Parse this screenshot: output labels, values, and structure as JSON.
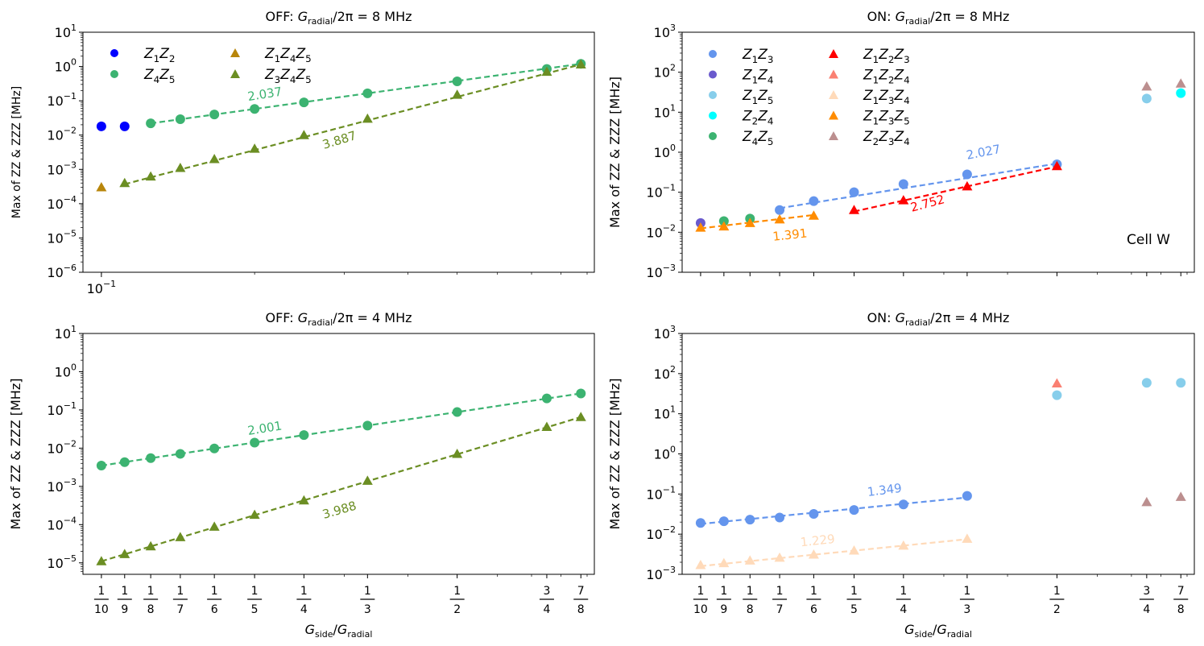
{
  "figure": {
    "xlabel": "G_side/G_radial",
    "cell_label": "Cell W"
  },
  "chart_data": [
    {
      "id": "off8",
      "type": "scatter",
      "title_prefix": "OFF: ",
      "title_suffix": "/2π = 8 MHz",
      "ylabel": "Max of ZZ & ZZZ [MHz]",
      "ylim_exp": [
        -6,
        1
      ],
      "ytick_exps": [
        -5,
        -4,
        -3,
        -2,
        -1,
        0,
        1
      ],
      "xscale_note": "log",
      "xtick_label": "10⁻¹",
      "legend": {
        "placement": "top-left",
        "columns": 2
      },
      "series": [
        {
          "name": "Z1Z2",
          "color": "#0000ff",
          "marker": "circle",
          "x": [
            0.1,
            0.1111
          ],
          "y": [
            0.018,
            0.018
          ]
        },
        {
          "name": "Z4Z5",
          "color": "#3cb371",
          "marker": "circle",
          "x": [
            0.125,
            0.1429,
            0.1667,
            0.2,
            0.25,
            0.3333,
            0.5,
            0.75,
            0.875
          ],
          "y": [
            0.022,
            0.029,
            0.04,
            0.058,
            0.09,
            0.165,
            0.37,
            0.85,
            1.2
          ]
        },
        {
          "name": "Z1Z4Z5",
          "color": "#b8860b",
          "marker": "triangle",
          "x": [
            0.1
          ],
          "y": [
            0.0003
          ]
        },
        {
          "name": "Z3Z4Z5",
          "color": "#6b8e23",
          "marker": "triangle",
          "x": [
            0.1111,
            0.125,
            0.1429,
            0.1667,
            0.2,
            0.25,
            0.3333,
            0.5,
            0.75,
            0.875
          ],
          "y": [
            0.0004,
            0.00062,
            0.0011,
            0.002,
            0.004,
            0.01,
            0.03,
            0.15,
            0.7,
            1.15
          ]
        }
      ],
      "fits": [
        {
          "color": "#3cb371",
          "x": [
            0.125,
            0.875
          ],
          "y": [
            0.022,
            1.2
          ],
          "label": "2.037",
          "lx": 0.21,
          "ly": 0.12,
          "angle": -9
        },
        {
          "color": "#6b8e23",
          "x": [
            0.1111,
            0.875
          ],
          "y": [
            0.00037,
            1.15
          ],
          "label": "3.887",
          "lx": 0.295,
          "ly": 0.0055,
          "angle": -17
        }
      ]
    },
    {
      "id": "on8",
      "type": "scatter",
      "title_prefix": "ON: ",
      "title_suffix": "/2π = 8 MHz",
      "ylabel": "Max of ZZ & ZZZ [MHz]",
      "ylim_exp": [
        -3,
        3
      ],
      "ytick_exps": [
        -3,
        -2,
        -1,
        0,
        1,
        2,
        3
      ],
      "legend": {
        "placement": "top-left",
        "columns": 2
      },
      "series": [
        {
          "name": "Z1Z3",
          "color": "#6495ed",
          "marker": "circle",
          "x": [
            0.1429,
            0.1667,
            0.2,
            0.25,
            0.3333,
            0.5
          ],
          "y": [
            0.036,
            0.06,
            0.1,
            0.16,
            0.28,
            0.5
          ]
        },
        {
          "name": "Z1Z4",
          "color": "#6a5acd",
          "marker": "circle",
          "x": [
            0.1
          ],
          "y": [
            0.017
          ]
        },
        {
          "name": "Z1Z5",
          "color": "#87ceeb",
          "marker": "circle",
          "x": [
            0.75
          ],
          "y": [
            22
          ]
        },
        {
          "name": "Z2Z4",
          "color": "#00ffff",
          "marker": "circle",
          "x": [
            0.875
          ],
          "y": [
            30
          ]
        },
        {
          "name": "Z4Z5",
          "color": "#3cb371",
          "marker": "circle",
          "x": [
            0.1111,
            0.125
          ],
          "y": [
            0.019,
            0.022
          ]
        },
        {
          "name": "Z1Z2Z3",
          "color": "#ff0000",
          "marker": "triangle",
          "x": [
            0.2,
            0.25,
            0.3333,
            0.5
          ],
          "y": [
            0.036,
            0.063,
            0.14,
            0.45
          ]
        },
        {
          "name": "Z1Z2Z4",
          "color": "#fa8072",
          "marker": "triangle",
          "x": [],
          "y": []
        },
        {
          "name": "Z1Z3Z4",
          "color": "#ffdab9",
          "marker": "triangle",
          "x": [],
          "y": []
        },
        {
          "name": "Z1Z3Z5",
          "color": "#ff8c00",
          "marker": "triangle",
          "x": [
            0.1,
            0.1111,
            0.125,
            0.1429,
            0.1667
          ],
          "y": [
            0.013,
            0.014,
            0.017,
            0.021,
            0.026
          ]
        },
        {
          "name": "Z2Z3Z4",
          "color": "#bc8f8f",
          "marker": "triangle",
          "x": [
            0.75,
            0.875
          ],
          "y": [
            44,
            52
          ]
        }
      ],
      "fits": [
        {
          "color": "#6495ed",
          "x": [
            0.1429,
            0.5
          ],
          "y": [
            0.04,
            0.52
          ],
          "label": "2.027",
          "lx": 0.36,
          "ly": 0.8,
          "angle": -11
        },
        {
          "color": "#ff0000",
          "x": [
            0.2,
            0.5
          ],
          "y": [
            0.033,
            0.44
          ],
          "label": "2.752",
          "lx": 0.28,
          "ly": 0.042,
          "angle": -15
        },
        {
          "color": "#ff8c00",
          "x": [
            0.1,
            0.1667
          ],
          "y": [
            0.0125,
            0.027
          ],
          "label": "1.391",
          "lx": 0.15,
          "ly": 0.0068,
          "angle": -6
        }
      ]
    },
    {
      "id": "off4",
      "type": "scatter",
      "title_prefix": "OFF: ",
      "title_suffix": "/2π = 4 MHz",
      "ylabel": "Max of ZZ & ZZZ [MHz]",
      "ylim_exp": [
        -5.3,
        1
      ],
      "ytick_exps": [
        -5,
        -4,
        -3,
        -2,
        -1,
        0,
        1
      ],
      "series": [
        {
          "name": "Z4Z5",
          "color": "#3cb371",
          "marker": "circle",
          "x": [
            0.1,
            0.1111,
            0.125,
            0.1429,
            0.1667,
            0.2,
            0.25,
            0.3333,
            0.5,
            0.75,
            0.875
          ],
          "y": [
            0.0035,
            0.0043,
            0.0055,
            0.0071,
            0.0098,
            0.014,
            0.022,
            0.039,
            0.088,
            0.2,
            0.27
          ]
        },
        {
          "name": "Z3Z4Z5",
          "color": "#6b8e23",
          "marker": "triangle",
          "x": [
            0.1,
            0.1111,
            0.125,
            0.1429,
            0.1667,
            0.2,
            0.25,
            0.3333,
            0.5,
            0.75,
            0.875
          ],
          "y": [
            1.1e-05,
            1.7e-05,
            2.7e-05,
            4.7e-05,
            8.8e-05,
            0.00018,
            0.00043,
            0.0014,
            0.0071,
            0.036,
            0.065
          ]
        }
      ],
      "fits": [
        {
          "color": "#3cb371",
          "x": [
            0.1,
            0.875
          ],
          "y": [
            0.0035,
            0.27
          ],
          "label": "2.001",
          "lx": 0.21,
          "ly": 0.026,
          "angle": -9
        },
        {
          "color": "#6b8e23",
          "x": [
            0.1,
            0.875
          ],
          "y": [
            1.1e-05,
            0.065
          ],
          "label": "3.988",
          "lx": 0.295,
          "ly": 0.00019,
          "angle": -16
        }
      ]
    },
    {
      "id": "on4",
      "type": "scatter",
      "title_prefix": "ON: ",
      "title_suffix": "/2π = 4 MHz",
      "ylabel": "Max of ZZ & ZZZ [MHz]",
      "ylim_exp": [
        -3,
        3
      ],
      "ytick_exps": [
        -3,
        -2,
        -1,
        0,
        1,
        2,
        3
      ],
      "series": [
        {
          "name": "Z1Z3",
          "color": "#6495ed",
          "marker": "circle",
          "x": [
            0.1,
            0.1111,
            0.125,
            0.1429,
            0.1667,
            0.2,
            0.25,
            0.3333
          ],
          "y": [
            0.019,
            0.021,
            0.023,
            0.026,
            0.032,
            0.04,
            0.055,
            0.09
          ]
        },
        {
          "name": "Z1Z5",
          "color": "#87ceeb",
          "marker": "circle",
          "x": [
            0.5,
            0.75,
            0.875
          ],
          "y": [
            29,
            59,
            59
          ]
        },
        {
          "name": "Z1Z2Z4",
          "color": "#fa8072",
          "marker": "triangle",
          "x": [
            0.5
          ],
          "y": [
            57
          ]
        },
        {
          "name": "Z1Z3Z4",
          "color": "#ffdab9",
          "marker": "triangle",
          "x": [
            0.1,
            0.1111,
            0.125,
            0.1429,
            0.1667,
            0.2,
            0.25,
            0.3333
          ],
          "y": [
            0.0017,
            0.0019,
            0.0022,
            0.0026,
            0.0031,
            0.0039,
            0.0052,
            0.0077
          ]
        },
        {
          "name": "Z2Z3Z4",
          "color": "#bc8f8f",
          "marker": "triangle",
          "x": [
            0.75,
            0.875
          ],
          "y": [
            0.063,
            0.085
          ]
        }
      ],
      "fits": [
        {
          "color": "#6495ed",
          "x": [
            0.1,
            0.3333
          ],
          "y": [
            0.018,
            0.082
          ],
          "label": "1.349",
          "lx": 0.23,
          "ly": 0.1,
          "angle": -7
        },
        {
          "color": "#ffdab9",
          "x": [
            0.1,
            0.3333
          ],
          "y": [
            0.0016,
            0.0075
          ],
          "label": "1.229",
          "lx": 0.17,
          "ly": 0.0055,
          "angle": -6
        }
      ]
    }
  ],
  "xticks": [
    {
      "v": 0.1,
      "n": "1",
      "d": "10"
    },
    {
      "v": 0.1111,
      "n": "1",
      "d": "9"
    },
    {
      "v": 0.125,
      "n": "1",
      "d": "8"
    },
    {
      "v": 0.1429,
      "n": "1",
      "d": "7"
    },
    {
      "v": 0.1667,
      "n": "1",
      "d": "6"
    },
    {
      "v": 0.2,
      "n": "1",
      "d": "5"
    },
    {
      "v": 0.25,
      "n": "1",
      "d": "4"
    },
    {
      "v": 0.3333,
      "n": "1",
      "d": "3"
    },
    {
      "v": 0.5,
      "n": "1",
      "d": "2"
    },
    {
      "v": 0.75,
      "n": "3",
      "d": "4"
    },
    {
      "v": 0.875,
      "n": "7",
      "d": "8"
    }
  ]
}
